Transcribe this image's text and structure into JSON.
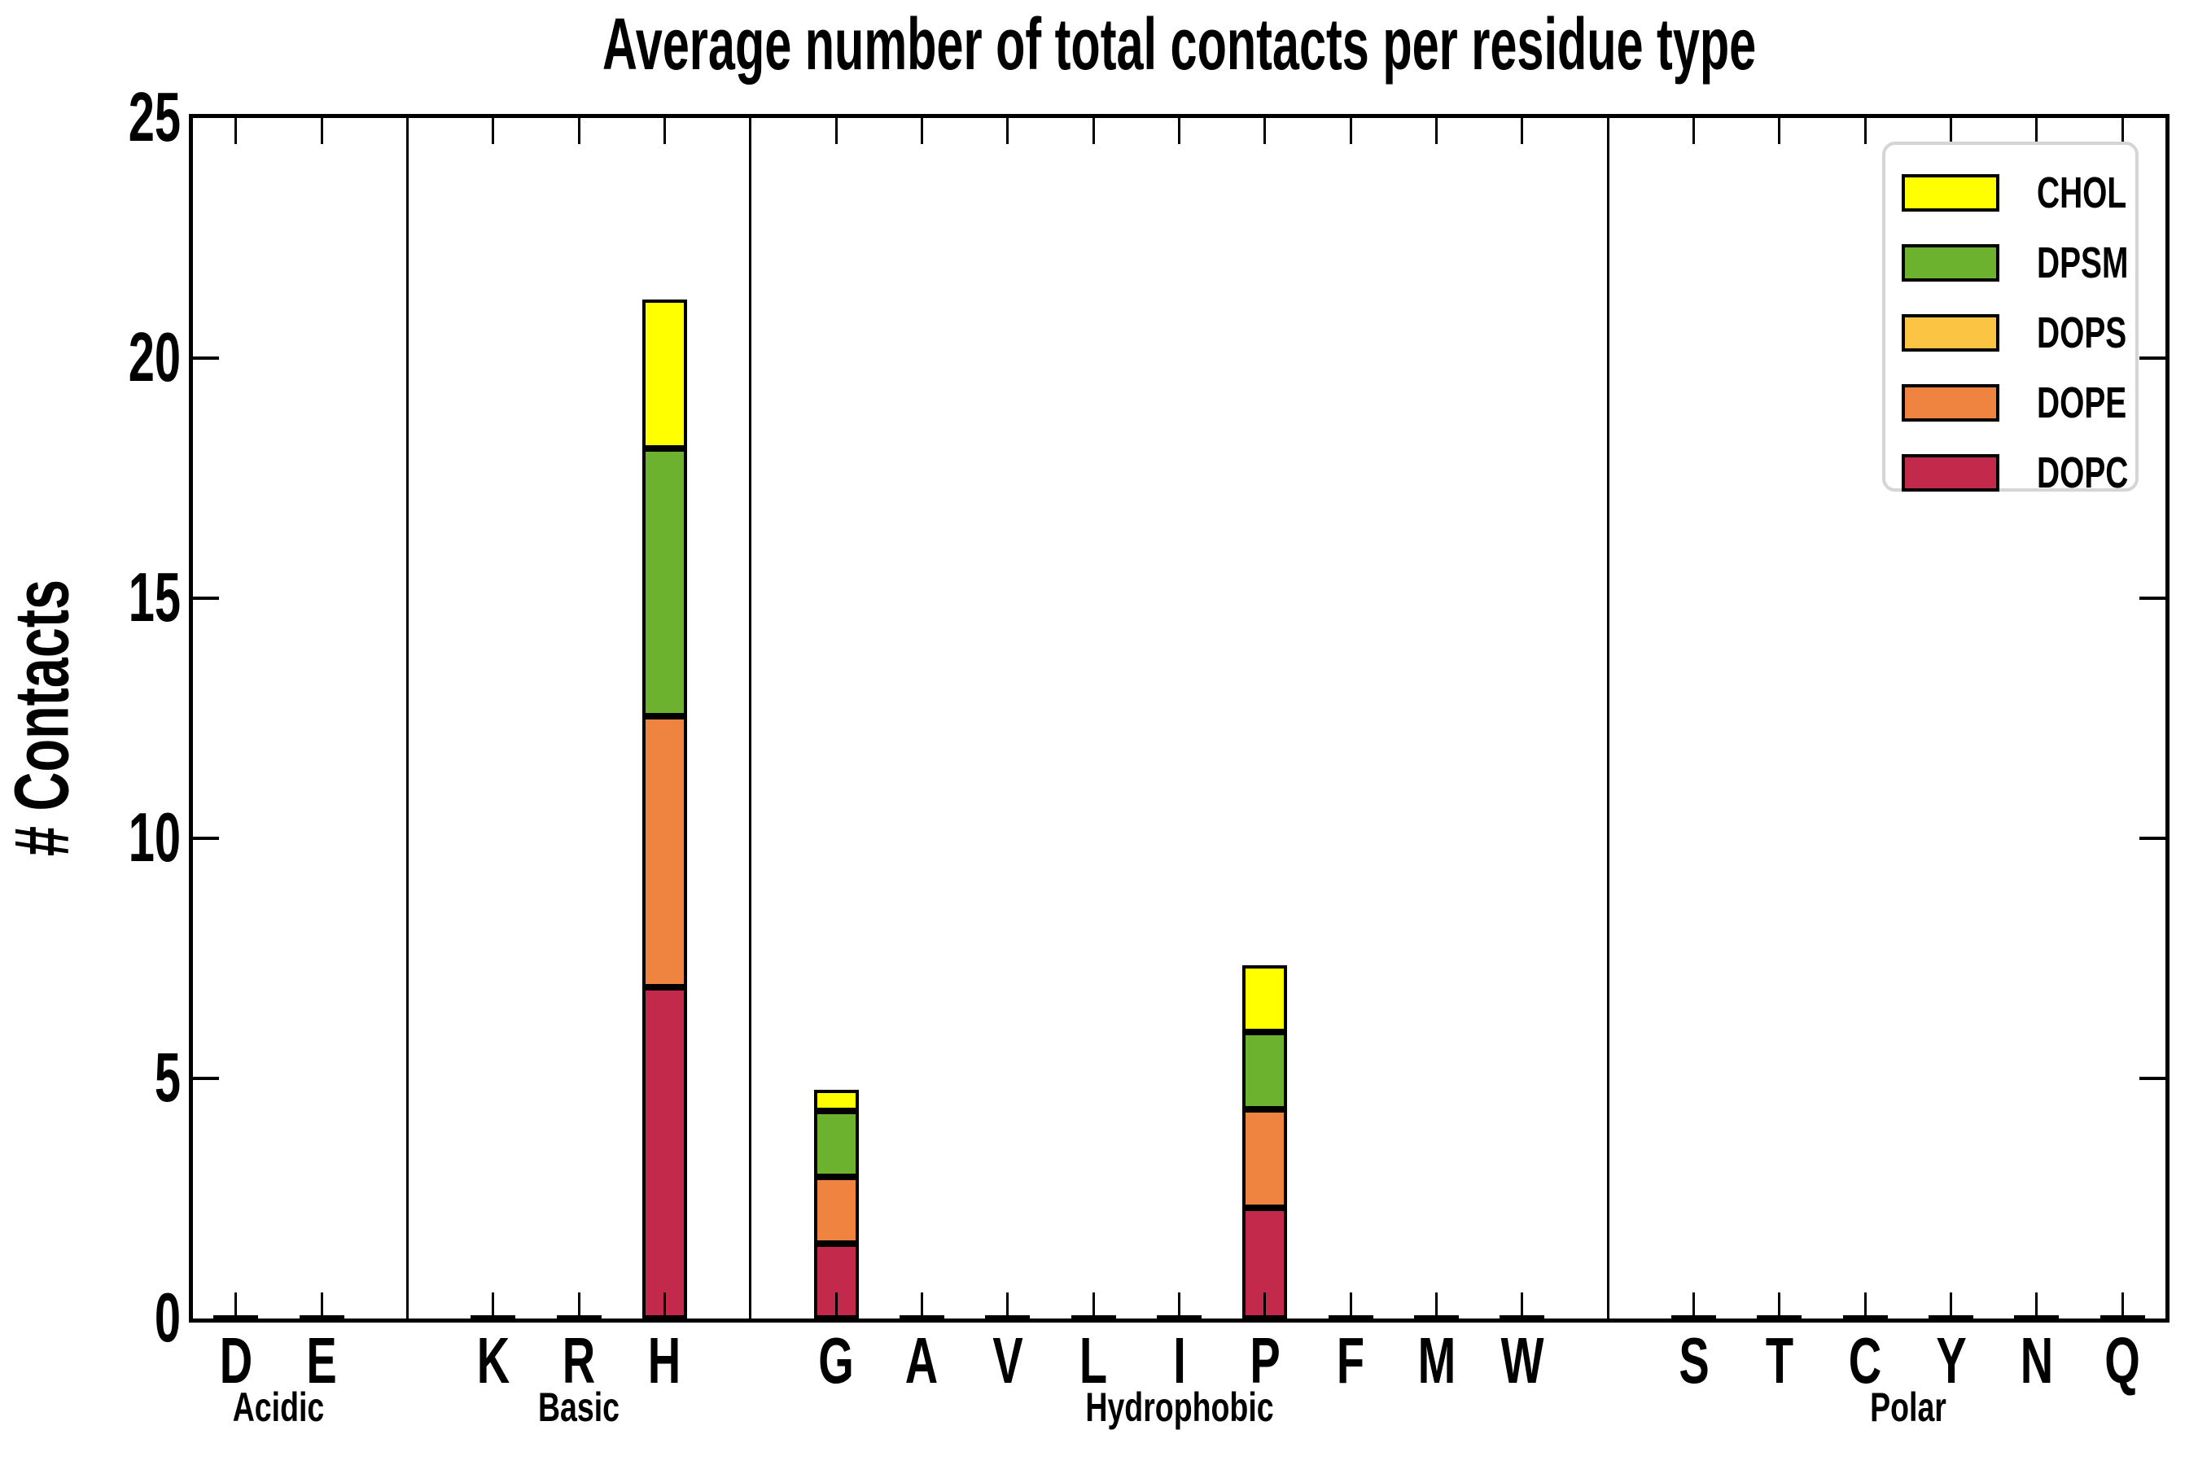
{
  "page": {
    "background": "#ffffff"
  },
  "chart_data": {
    "type": "bar",
    "stacked": true,
    "title": "Average number of total contacts per residue type",
    "ylabel": "# Contacts",
    "xlabel": "",
    "ylim": [
      0,
      25
    ],
    "yticks": [
      0,
      5,
      10,
      15,
      20,
      25
    ],
    "grid": false,
    "legend_position": "upper right",
    "tick_direction": "in",
    "stack_order": [
      "DOPC",
      "DOPE",
      "DOPS",
      "DPSM",
      "CHOL"
    ],
    "colors": {
      "CHOL": "#FFFF00",
      "DPSM": "#6CB22F",
      "DOPS": "#FBC443",
      "DOPE": "#EE8440",
      "DOPC": "#C3294B"
    },
    "legend": [
      {
        "label": "CHOL",
        "color": "#FFFF00"
      },
      {
        "label": "DPSM",
        "color": "#6CB22F"
      },
      {
        "label": "DOPS",
        "color": "#FBC443"
      },
      {
        "label": "DOPE",
        "color": "#EE8440"
      },
      {
        "label": "DOPC",
        "color": "#C3294B"
      }
    ],
    "groups": [
      {
        "label": "Acidic",
        "residues": [
          "D",
          "E"
        ]
      },
      {
        "label": "Basic",
        "residues": [
          "K",
          "R",
          "H"
        ]
      },
      {
        "label": "Hydrophobic",
        "residues": [
          "G",
          "A",
          "V",
          "L",
          "I",
          "P",
          "F",
          "M",
          "W"
        ]
      },
      {
        "label": "Polar",
        "residues": [
          "S",
          "T",
          "C",
          "Y",
          "N",
          "Q"
        ]
      }
    ],
    "values": {
      "D": {
        "DOPC": 0.05
      },
      "E": {
        "DOPC": 0.05
      },
      "K": {
        "DOPC": 0.05
      },
      "R": {
        "DOPC": 0.05
      },
      "H": {
        "DOPC": 6.9,
        "DOPE": 5.64,
        "DOPS": 0,
        "DPSM": 5.58,
        "CHOL": 3.1
      },
      "G": {
        "DOPC": 1.56,
        "DOPE": 1.39,
        "DOPS": 0,
        "DPSM": 1.37,
        "CHOL": 0.44
      },
      "A": {
        "DOPC": 0.05
      },
      "V": {
        "DOPC": 0.05
      },
      "L": {
        "DOPC": 0.05
      },
      "I": {
        "DOPC": 0.05
      },
      "P": {
        "DOPC": 2.31,
        "DOPE": 2.05,
        "DOPS": 0,
        "DPSM": 1.61,
        "CHOL": 1.39
      },
      "F": {
        "DOPC": 0.05
      },
      "M": {
        "DOPC": 0.05
      },
      "W": {
        "DOPC": 0.05
      },
      "S": {
        "DOPC": 0.05
      },
      "T": {
        "DOPC": 0.05
      },
      "C": {
        "DOPC": 0.05
      },
      "Y": {
        "DOPC": 0.05
      },
      "N": {
        "DOPC": 0.05
      },
      "Q": {
        "DOPC": 0.05
      }
    }
  }
}
